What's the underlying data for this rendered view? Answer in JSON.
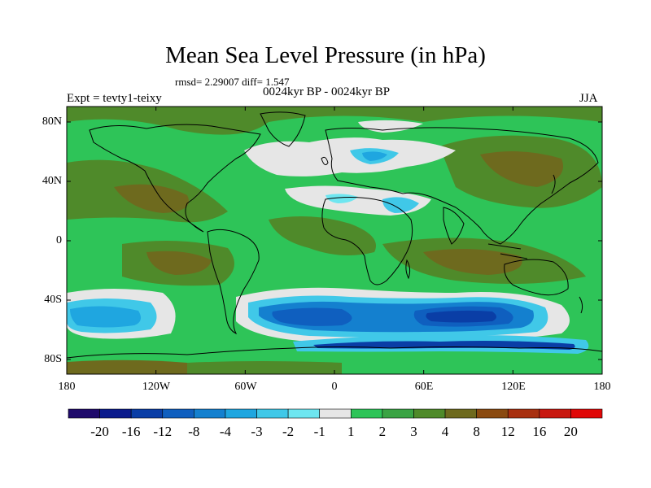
{
  "title": "Mean Sea Level Pressure (in hPa)",
  "stats_text": "rmsd= 2.29007 diff= 1.547",
  "left_label": "Expt = tevty1-teixy",
  "center_label": "0024kyr BP - 0024kyr BP",
  "right_label": "JJA",
  "lat_labels": [
    "80N",
    "40N",
    "0",
    "40S",
    "80S"
  ],
  "lon_labels": [
    "180",
    "120W",
    "60W",
    "0",
    "60E",
    "120E",
    "180"
  ],
  "colorbar": {
    "labels": [
      "-20",
      "-16",
      "-12",
      "-8",
      "-4",
      "-3",
      "-2",
      "-1",
      "1",
      "2",
      "3",
      "4",
      "8",
      "12",
      "16",
      "20"
    ],
    "colors": [
      "#1f0a6b",
      "#0a1a8c",
      "#0a3ea6",
      "#0f5fbf",
      "#1480cf",
      "#1fa6e0",
      "#40c8e8",
      "#6ee6f0",
      "#e6e6e6",
      "#2ec458",
      "#3aa344",
      "#4f8a2a",
      "#6e6a1e",
      "#8a4a10",
      "#a83010",
      "#c81810",
      "#e00808"
    ]
  },
  "colors": {
    "land_green": "#2ec458",
    "dark_green": "#4f8a2a",
    "olive": "#6e6a1e",
    "near_zero": "#e6e6e6",
    "light_blue": "#40c8e8",
    "mid_blue": "#1480cf",
    "deep_blue": "#0a3ea6"
  }
}
